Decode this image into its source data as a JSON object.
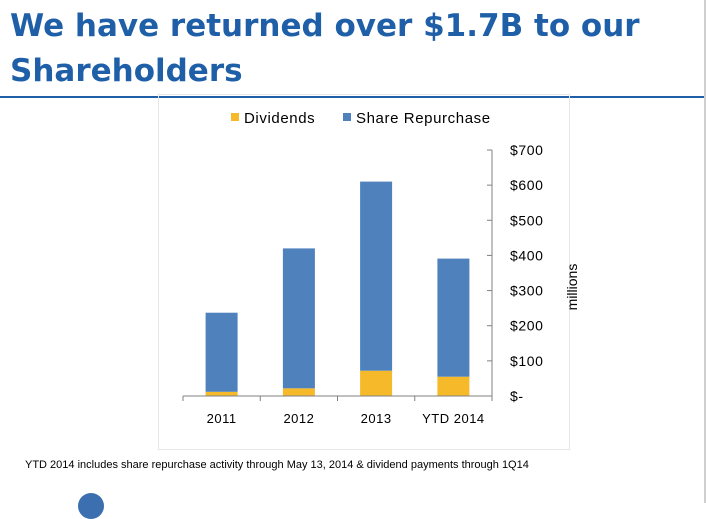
{
  "slide": {
    "title": "We have returned over $1.7B to our Shareholders",
    "footnote": "YTD 2014 includes share repurchase activity through May 13, 2014 & dividend payments through 1Q14"
  },
  "colors": {
    "title": "#1f5fa8",
    "dividends": "#f5b929",
    "share_repurchase": "#4f81bd"
  },
  "chart_data": {
    "type": "bar",
    "stacked": true,
    "categories": [
      "2011",
      "2012",
      "2013",
      "YTD 2014"
    ],
    "series": [
      {
        "name": "Dividends",
        "values": [
          12,
          22,
          72,
          55
        ],
        "color": "#f5b929"
      },
      {
        "name": "Share Repurchase",
        "values": [
          225,
          398,
          538,
          336
        ],
        "color": "#4f81bd"
      }
    ],
    "yticks": [
      "$-",
      "$100",
      "$200",
      "$300",
      "$400",
      "$500",
      "$600",
      "$700"
    ],
    "ylim": [
      0,
      700
    ],
    "ylabel": "millions",
    "yaxis_position": "right",
    "legend_position": "top",
    "grid": false
  }
}
